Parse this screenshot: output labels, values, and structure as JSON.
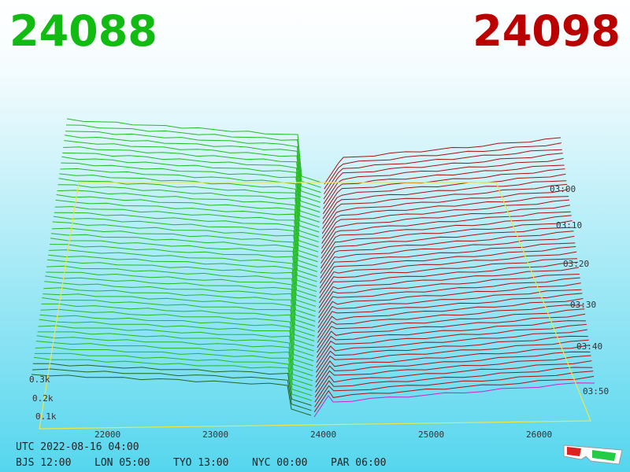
{
  "header": {
    "bid": "24088",
    "ask": "24098"
  },
  "price_axis": [
    "22000",
    "23000",
    "24000",
    "25000",
    "26000"
  ],
  "time_axis": [
    "03:00",
    "03:10",
    "03:20",
    "03:30",
    "03:40",
    "03:50"
  ],
  "volume_axis": [
    "0.3k",
    "0.2k",
    "0.1k"
  ],
  "footer": {
    "utc": "UTC 2022-08-16 04:00",
    "clocks": [
      "BJS 12:00",
      "LON 05:00",
      "TYO 13:00",
      "NYC 00:00",
      "PAR 06:00"
    ]
  }
}
